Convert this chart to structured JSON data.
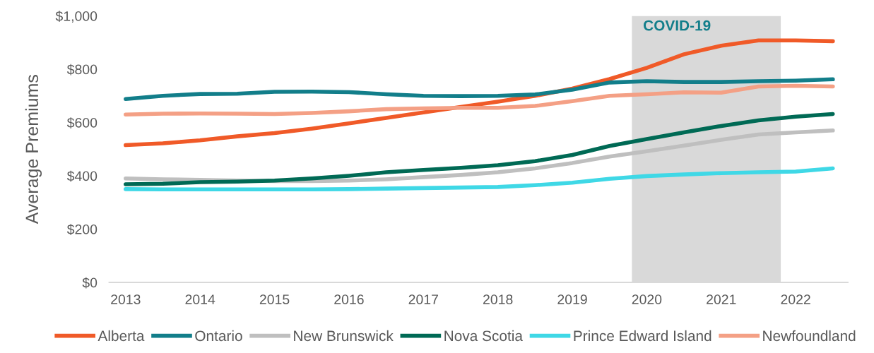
{
  "chart_data": {
    "type": "line",
    "ylabel": "Average Premiums",
    "x": [
      2013,
      2013.5,
      2014,
      2014.5,
      2015,
      2015.5,
      2016,
      2016.5,
      2017,
      2017.5,
      2018,
      2018.5,
      2019,
      2019.5,
      2020,
      2020.5,
      2021,
      2021.5,
      2022,
      2022.5
    ],
    "series": [
      {
        "name": "Alberta",
        "color": "#f05a28",
        "values": [
          515,
          522,
          533,
          548,
          560,
          577,
          597,
          617,
          638,
          658,
          678,
          700,
          727,
          763,
          805,
          856,
          888,
          908,
          908,
          905
        ]
      },
      {
        "name": "Ontario",
        "color": "#127e8a",
        "values": [
          688,
          700,
          707,
          708,
          715,
          716,
          714,
          706,
          700,
          699,
          700,
          705,
          723,
          750,
          755,
          752,
          752,
          755,
          757,
          762
        ]
      },
      {
        "name": "New Brunswick",
        "color": "#bfbfbf",
        "values": [
          390,
          387,
          385,
          382,
          380,
          380,
          382,
          387,
          395,
          403,
          413,
          428,
          448,
          472,
          492,
          513,
          535,
          555,
          563,
          570
        ]
      },
      {
        "name": "Nova Scotia",
        "color": "#006a55",
        "values": [
          368,
          370,
          376,
          378,
          382,
          390,
          400,
          413,
          422,
          430,
          440,
          455,
          478,
          512,
          538,
          563,
          587,
          608,
          622,
          632
        ]
      },
      {
        "name": "Prince Edward Island",
        "color": "#3fd8e6",
        "values": [
          350,
          349,
          349,
          349,
          349,
          349,
          350,
          352,
          354,
          356,
          358,
          365,
          374,
          389,
          399,
          405,
          410,
          413,
          416,
          428
        ]
      },
      {
        "name": "Newfoundland",
        "color": "#f4a085",
        "values": [
          630,
          633,
          634,
          633,
          632,
          636,
          642,
          650,
          653,
          655,
          655,
          662,
          680,
          700,
          706,
          713,
          712,
          735,
          738,
          735
        ]
      }
    ],
    "xlim": [
      2012.78,
      2022.7
    ],
    "xticks": [
      2013,
      2014,
      2015,
      2016,
      2017,
      2018,
      2019,
      2020,
      2021,
      2022
    ],
    "ylim": [
      0,
      1000
    ],
    "yticks": [
      {
        "value": 0,
        "label": "$0"
      },
      {
        "value": 200,
        "label": "$200"
      },
      {
        "value": 400,
        "label": "$400"
      },
      {
        "value": 600,
        "label": "$600"
      },
      {
        "value": 800,
        "label": "$800"
      },
      {
        "value": 1000,
        "label": "$1,000"
      }
    ],
    "bands": [
      {
        "axis": "x",
        "from": 2019.8,
        "to": 2021.8,
        "label": "COVID-19",
        "color": "#d9d9d9"
      }
    ],
    "grid": false,
    "legend": "bottom",
    "marker": "none",
    "line_style": "solid"
  }
}
